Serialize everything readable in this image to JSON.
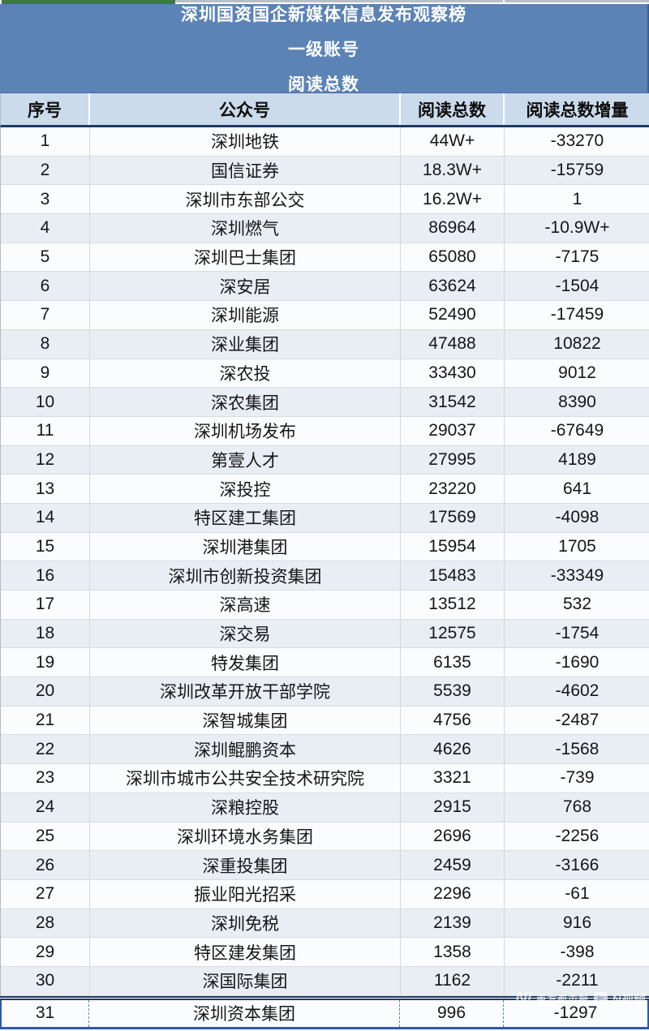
{
  "banner": {
    "lines": [
      "深圳国资国企新媒体信息发布观察榜",
      "一级账号",
      "阅读总数"
    ]
  },
  "table": {
    "columns": [
      "序号",
      "公众号",
      "阅读总数",
      "阅读总数增量"
    ],
    "rows": [
      [
        "1",
        "深圳地铁",
        "44W+",
        "-33270"
      ],
      [
        "2",
        "国信证券",
        "18.3W+",
        "-15759"
      ],
      [
        "3",
        "深圳市东部公交",
        "16.2W+",
        "1"
      ],
      [
        "4",
        "深圳燃气",
        "86964",
        "-10.9W+"
      ],
      [
        "5",
        "深圳巴士集团",
        "65080",
        "-7175"
      ],
      [
        "6",
        "深安居",
        "63624",
        "-1504"
      ],
      [
        "7",
        "深圳能源",
        "52490",
        "-17459"
      ],
      [
        "8",
        "深业集团",
        "47488",
        "10822"
      ],
      [
        "9",
        "深农投",
        "33430",
        "9012"
      ],
      [
        "10",
        "深农集团",
        "31542",
        "8390"
      ],
      [
        "11",
        "深圳机场发布",
        "29037",
        "-67649"
      ],
      [
        "12",
        "第壹人才",
        "27995",
        "4189"
      ],
      [
        "13",
        "深投控",
        "23220",
        "641"
      ],
      [
        "14",
        "特区建工集团",
        "17569",
        "-4098"
      ],
      [
        "15",
        "深圳港集团",
        "15954",
        "1705"
      ],
      [
        "16",
        "深圳市创新投资集团",
        "15483",
        "-33349"
      ],
      [
        "17",
        "深高速",
        "13512",
        "532"
      ],
      [
        "18",
        "深交易",
        "12575",
        "-1754"
      ],
      [
        "19",
        "特发集团",
        "6135",
        "-1690"
      ],
      [
        "20",
        "深圳改革开放干部学院",
        "5539",
        "-4602"
      ],
      [
        "21",
        "深智城集团",
        "4756",
        "-2487"
      ],
      [
        "22",
        "深圳鲲鹏资本",
        "4626",
        "-1568"
      ],
      [
        "23",
        "深圳市城市公共安全技术研究院",
        "3321",
        "-739"
      ],
      [
        "24",
        "深粮控股",
        "2915",
        "768"
      ],
      [
        "25",
        "深圳环境水务集团",
        "2696",
        "-2256"
      ],
      [
        "26",
        "深重投集团",
        "2459",
        "-3166"
      ],
      [
        "27",
        "振业阳光招采",
        "2296",
        "-61"
      ],
      [
        "28",
        "深圳免税",
        "2139",
        "916"
      ],
      [
        "29",
        "特区建发集团",
        "1358",
        "-398"
      ],
      [
        "30",
        "深国际集团",
        "1162",
        "-2211"
      ],
      [
        "31",
        "深圳资本集团",
        "996",
        "-1297"
      ]
    ]
  },
  "watermark": {
    "logo": "N!",
    "brand": "南方都市报",
    "play_icon": "▶",
    "video": "N视频"
  },
  "colors": {
    "banner_blue": "#5b83b6",
    "header_bg": "#cbdbec",
    "stripe_bg": "#e8eef4",
    "navy_border": "#1e3a66",
    "pagebreak_blue": "#2d5aa9",
    "green_strip": "#3b7b3d"
  }
}
